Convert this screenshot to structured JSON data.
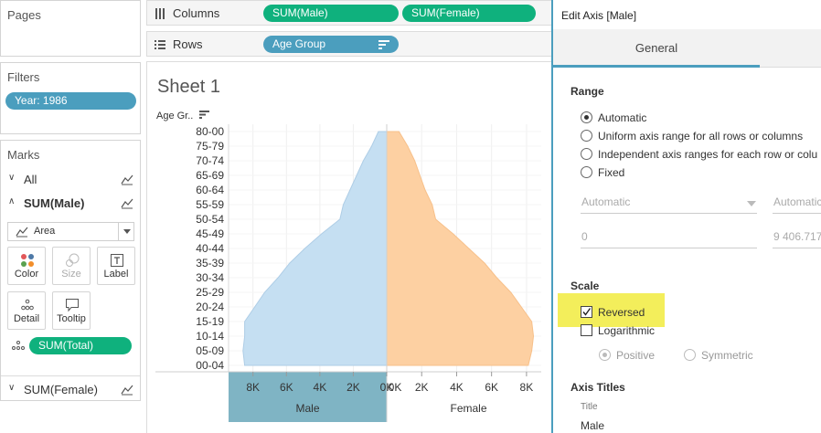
{
  "pages": {
    "title": "Pages"
  },
  "filters": {
    "title": "Filters",
    "pills": [
      "Year: 1986"
    ]
  },
  "marks": {
    "title": "Marks",
    "all_label": "All",
    "sum_male_label": "SUM(Male)",
    "sum_female_label": "SUM(Female)",
    "mark_type": "Area",
    "buttons": {
      "color": "Color",
      "size": "Size",
      "label": "Label",
      "detail": "Detail",
      "tooltip": "Tooltip"
    },
    "field_pill": "SUM(Total)"
  },
  "shelves": {
    "columns_label": "Columns",
    "columns_pills": [
      "SUM(Male)",
      "SUM(Female)"
    ],
    "rows_label": "Rows",
    "rows_pill": "Age Group"
  },
  "sheet": {
    "title": "Sheet 1",
    "row_header": "Age Gr.."
  },
  "colors": {
    "male": "#c5dff2",
    "female": "#fdd0a2",
    "pill_blue": "#4b9ebe",
    "pill_green": "#0fb17d",
    "highlight": "#f3ee5b"
  },
  "chart_data": {
    "type": "area",
    "categories": [
      "00-04",
      "05-09",
      "10-14",
      "15-19",
      "20-24",
      "25-29",
      "30-34",
      "35-39",
      "40-44",
      "45-49",
      "50-54",
      "55-59",
      "60-64",
      "65-69",
      "70-74",
      "75-79",
      "80-00"
    ],
    "series": [
      {
        "name": "Male",
        "axis_reversed": true,
        "values": [
          8500,
          8600,
          8500,
          8500,
          7900,
          7300,
          6500,
          5800,
          4900,
          3900,
          2800,
          2600,
          2200,
          1800,
          1400,
          900,
          500
        ]
      },
      {
        "name": "Female",
        "values": [
          8100,
          8300,
          8400,
          8300,
          7700,
          7100,
          6300,
          5600,
          4700,
          3800,
          2800,
          2600,
          2200,
          1900,
          1600,
          1200,
          700
        ]
      }
    ],
    "male_axis": {
      "title": "Male",
      "ticks": [
        "8K",
        "6K",
        "4K",
        "2K",
        "0K"
      ],
      "range": [
        0,
        9406.717
      ],
      "reversed": true
    },
    "female_axis": {
      "title": "Female",
      "ticks": [
        "0K",
        "2K",
        "4K",
        "6K",
        "8K"
      ],
      "range": [
        0,
        9000
      ]
    }
  },
  "dialog": {
    "title": "Edit Axis [Male]",
    "tab": "General",
    "range_title": "Range",
    "range_options": [
      "Automatic",
      "Uniform axis range for all rows or columns",
      "Independent axis ranges for each row or colu",
      "Fixed"
    ],
    "selected_range": "Automatic",
    "start_select": "Automatic",
    "end_select": "Automatic",
    "start_value": "0",
    "end_value": "9 406.717",
    "scale_title": "Scale",
    "reversed_label": "Reversed",
    "reversed_checked": true,
    "logarithmic_label": "Logarithmic",
    "logarithmic_checked": false,
    "positive_label": "Positive",
    "symmetric_label": "Symmetric",
    "axis_titles_title": "Axis Titles",
    "title_field_label": "Title",
    "title_value": "Male"
  }
}
